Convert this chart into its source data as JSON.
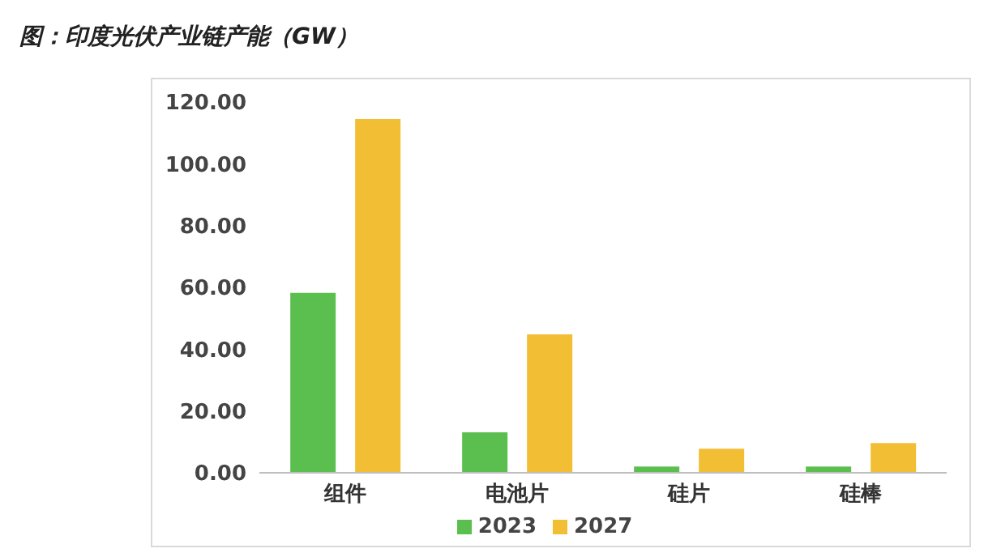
{
  "chart_data": {
    "type": "bar",
    "title": "图：印度光伏产业链产能（GW）",
    "categories": [
      "组件",
      "电池片",
      "硅片",
      "硅棒"
    ],
    "series": [
      {
        "name": "2023",
        "color": "#5bbf4f",
        "values": [
          58.2,
          13.1,
          2.0,
          2.0
        ]
      },
      {
        "name": "2027",
        "color": "#f2be33",
        "values": [
          114.5,
          44.8,
          7.8,
          9.6
        ]
      }
    ],
    "ylim": [
      0,
      120
    ],
    "yticks": [
      {
        "value": 0,
        "label": "0.00"
      },
      {
        "value": 20,
        "label": "20.00"
      },
      {
        "value": 40,
        "label": "40.00"
      },
      {
        "value": 60,
        "label": "60.00"
      },
      {
        "value": 80,
        "label": "80.00"
      },
      {
        "value": 100,
        "label": "100.00"
      },
      {
        "value": 120,
        "label": "120.00"
      }
    ],
    "grid": false,
    "legend": "bottom"
  }
}
